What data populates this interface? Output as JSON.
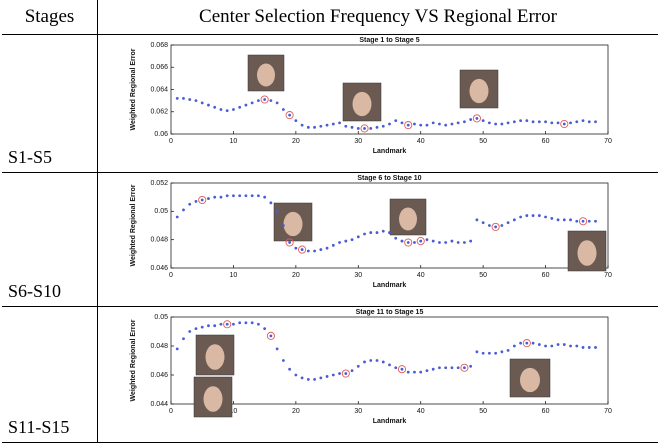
{
  "table": {
    "headers": [
      "Stages",
      "Center Selection Frequency VS Regional Error"
    ],
    "rows": [
      "S1-S5",
      "S6-S10",
      "S11-S15"
    ]
  },
  "chart_data": [
    {
      "type": "scatter",
      "title": "Stage 1 to Stage 5",
      "x_label": "Landmark",
      "y_label": "Weighted Regional Error",
      "xlim": [
        0,
        70
      ],
      "xticks": [
        0,
        10,
        20,
        30,
        40,
        50,
        60,
        70
      ],
      "ylim": [
        0.06,
        0.068
      ],
      "yticks": [
        0.06,
        0.062,
        0.064,
        0.066,
        0.068
      ],
      "series": [
        {
          "color": "#4a5bd4",
          "marker": "dot",
          "x": [
            1,
            2,
            3,
            4,
            5,
            6,
            7,
            8,
            9,
            10,
            11,
            12,
            13,
            14,
            15,
            16,
            17,
            18,
            19,
            20,
            21,
            22,
            23,
            24,
            25,
            26,
            27,
            28,
            29,
            30,
            31,
            32,
            33,
            34,
            35,
            36,
            37,
            38,
            39,
            40,
            41,
            42,
            43,
            44,
            45,
            46,
            47,
            48,
            49,
            50,
            51,
            52,
            53,
            54,
            55,
            56,
            57,
            58,
            59,
            60,
            61,
            62,
            63,
            64,
            65,
            66,
            67,
            68
          ],
          "values": [
            0.0632,
            0.0632,
            0.0631,
            0.063,
            0.0628,
            0.0626,
            0.0624,
            0.0622,
            0.0621,
            0.0622,
            0.0624,
            0.0626,
            0.0628,
            0.063,
            0.0631,
            0.063,
            0.0628,
            0.0622,
            0.0617,
            0.0612,
            0.0608,
            0.0606,
            0.0606,
            0.0607,
            0.0608,
            0.0609,
            0.061,
            0.0607,
            0.0606,
            0.0605,
            0.0605,
            0.0605,
            0.0606,
            0.0607,
            0.0609,
            0.0612,
            0.061,
            0.0608,
            0.0609,
            0.0608,
            0.0608,
            0.061,
            0.0609,
            0.0608,
            0.0609,
            0.061,
            0.0611,
            0.0613,
            0.0614,
            0.0612,
            0.061,
            0.0609,
            0.0609,
            0.061,
            0.0611,
            0.0612,
            0.0612,
            0.0611,
            0.0611,
            0.0611,
            0.061,
            0.061,
            0.0609,
            0.061,
            0.0611,
            0.0612,
            0.0611,
            0.0611
          ]
        },
        {
          "color": "#e05a5a",
          "marker": "ring",
          "x": [
            15,
            19,
            31,
            38,
            49,
            63
          ],
          "values": [
            0.0631,
            0.0617,
            0.0605,
            0.0608,
            0.0614,
            0.0609
          ]
        }
      ]
    },
    {
      "type": "scatter",
      "title": "Stage 6 to Stage 10",
      "x_label": "Landmark",
      "y_label": "Weighted Regional Error",
      "xlim": [
        0,
        70
      ],
      "xticks": [
        0,
        10,
        20,
        30,
        40,
        50,
        60,
        70
      ],
      "ylim": [
        0.046,
        0.052
      ],
      "yticks": [
        0.046,
        0.048,
        0.05,
        0.052
      ],
      "series": [
        {
          "color": "#4a5bd4",
          "marker": "dot",
          "x": [
            1,
            2,
            3,
            4,
            5,
            6,
            7,
            8,
            9,
            10,
            11,
            12,
            13,
            14,
            15,
            16,
            17,
            18,
            19,
            20,
            21,
            22,
            23,
            24,
            25,
            26,
            27,
            28,
            29,
            30,
            31,
            32,
            33,
            34,
            35,
            36,
            37,
            38,
            39,
            40,
            41,
            42,
            43,
            44,
            45,
            46,
            47,
            48,
            49,
            50,
            51,
            52,
            53,
            54,
            55,
            56,
            57,
            58,
            59,
            60,
            61,
            62,
            63,
            64,
            65,
            66,
            67,
            68
          ],
          "values": [
            0.0496,
            0.0501,
            0.0505,
            0.0507,
            0.0508,
            0.0509,
            0.051,
            0.051,
            0.0511,
            0.0511,
            0.0511,
            0.0511,
            0.0511,
            0.0511,
            0.051,
            0.0506,
            0.05,
            0.049,
            0.0478,
            0.0474,
            0.0473,
            0.0472,
            0.0472,
            0.0473,
            0.0474,
            0.0476,
            0.0478,
            0.0479,
            0.048,
            0.0482,
            0.0484,
            0.0485,
            0.0485,
            0.0486,
            0.0485,
            0.0481,
            0.0479,
            0.0478,
            0.0478,
            0.0479,
            0.048,
            0.0479,
            0.0478,
            0.0478,
            0.0479,
            0.0478,
            0.0478,
            0.0479,
            0.0494,
            0.0492,
            0.049,
            0.0489,
            0.049,
            0.0492,
            0.0494,
            0.0496,
            0.0497,
            0.0497,
            0.0497,
            0.0496,
            0.0495,
            0.0494,
            0.0494,
            0.0494,
            0.0493,
            0.0493,
            0.0493,
            0.0493
          ]
        },
        {
          "color": "#e05a5a",
          "marker": "ring",
          "x": [
            5,
            19,
            21,
            38,
            40,
            52,
            66
          ],
          "values": [
            0.0508,
            0.0478,
            0.0473,
            0.0478,
            0.0479,
            0.0489,
            0.0493
          ]
        }
      ]
    },
    {
      "type": "scatter",
      "title": "Stage 11 to Stage 15",
      "x_label": "Landmark",
      "y_label": "Weighted Regional Error",
      "xlim": [
        0,
        70
      ],
      "xticks": [
        0,
        10,
        20,
        30,
        40,
        50,
        60,
        70
      ],
      "ylim": [
        0.044,
        0.05
      ],
      "yticks": [
        0.044,
        0.046,
        0.048,
        0.05
      ],
      "series": [
        {
          "color": "#4a5bd4",
          "marker": "dot",
          "x": [
            1,
            2,
            3,
            4,
            5,
            6,
            7,
            8,
            9,
            10,
            11,
            12,
            13,
            14,
            15,
            16,
            17,
            18,
            19,
            20,
            21,
            22,
            23,
            24,
            25,
            26,
            27,
            28,
            29,
            30,
            31,
            32,
            33,
            34,
            35,
            36,
            37,
            38,
            39,
            40,
            41,
            42,
            43,
            44,
            45,
            46,
            47,
            48,
            49,
            50,
            51,
            52,
            53,
            54,
            55,
            56,
            57,
            58,
            59,
            60,
            61,
            62,
            63,
            64,
            65,
            66,
            67,
            68
          ],
          "values": [
            0.0478,
            0.0485,
            0.049,
            0.0492,
            0.0493,
            0.0494,
            0.0494,
            0.0495,
            0.0495,
            0.0495,
            0.0496,
            0.0496,
            0.0496,
            0.0495,
            0.0492,
            0.0487,
            0.0478,
            0.047,
            0.0464,
            0.046,
            0.0458,
            0.0457,
            0.0457,
            0.0458,
            0.0459,
            0.046,
            0.0461,
            0.0461,
            0.0463,
            0.0466,
            0.0469,
            0.047,
            0.047,
            0.0469,
            0.0467,
            0.0465,
            0.0464,
            0.0462,
            0.0462,
            0.0462,
            0.0463,
            0.0464,
            0.0465,
            0.0465,
            0.0465,
            0.0465,
            0.0465,
            0.0466,
            0.0476,
            0.0475,
            0.0475,
            0.0475,
            0.0476,
            0.0477,
            0.048,
            0.0482,
            0.0482,
            0.0482,
            0.0481,
            0.048,
            0.048,
            0.0481,
            0.0481,
            0.048,
            0.048,
            0.0479,
            0.0479,
            0.0479
          ]
        },
        {
          "color": "#e05a5a",
          "marker": "ring",
          "x": [
            9,
            16,
            28,
            37,
            47,
            57
          ],
          "values": [
            0.0495,
            0.0487,
            0.0461,
            0.0464,
            0.0465,
            0.0482
          ]
        }
      ]
    }
  ]
}
